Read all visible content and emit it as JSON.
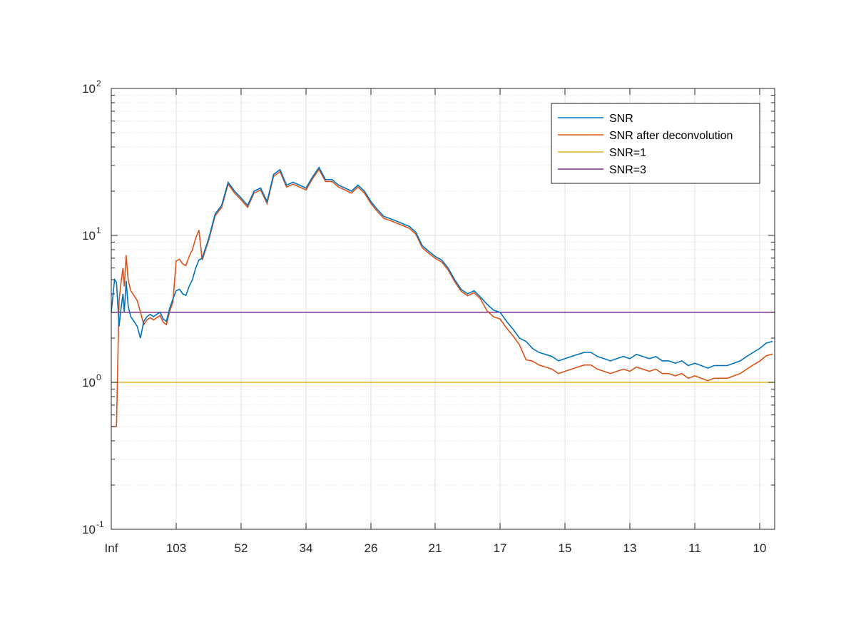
{
  "chart_data": {
    "type": "line",
    "title": "",
    "xlabel": "",
    "ylabel": "",
    "yscale": "log",
    "ylim": [
      0.1,
      100
    ],
    "y_tick_labels": [
      {
        "base": "10",
        "exp": "-1",
        "value": 0.1
      },
      {
        "base": "10",
        "exp": "0",
        "value": 1
      },
      {
        "base": "10",
        "exp": "1",
        "value": 10
      },
      {
        "base": "10",
        "exp": "2",
        "value": 100
      }
    ],
    "x_tick_labels": [
      "Inf",
      "103",
      "52",
      "34",
      "26",
      "21",
      "17",
      "15",
      "13",
      "11",
      "10"
    ],
    "grid": true,
    "minor_grid_y": true,
    "legend": {
      "placement": "top-right",
      "entries": [
        {
          "label": "SNR",
          "color": "#0072BD"
        },
        {
          "label": "SNR after deconvolution",
          "color": "#D95319"
        },
        {
          "label": "SNR=1",
          "color": "#EDB120"
        },
        {
          "label": "SNR=3",
          "color": "#7E2F8E"
        }
      ]
    },
    "series": [
      {
        "name": "SNR",
        "color": "#0072BD",
        "x_tick_positions": [
          0,
          0.05,
          0.08,
          0.12,
          0.15,
          0.18,
          0.2,
          0.23,
          0.26,
          0.3,
          0.35,
          0.4,
          0.45,
          0.5,
          0.55,
          0.6,
          0.65,
          0.7,
          0.75,
          0.8,
          0.85,
          0.9,
          0.95,
          1.0,
          1.05,
          1.1,
          1.15,
          1.2,
          1.25,
          1.3,
          1.35,
          1.4,
          1.5,
          1.6,
          1.7,
          1.8,
          1.9,
          2.0,
          2.1,
          2.2,
          2.3,
          2.4,
          2.5,
          2.6,
          2.7,
          2.8,
          2.9,
          3.0,
          3.1,
          3.2,
          3.3,
          3.4,
          3.5,
          3.6,
          3.7,
          3.8,
          3.9,
          4.0,
          4.1,
          4.2,
          4.3,
          4.4,
          4.5,
          4.6,
          4.7,
          4.8,
          4.9,
          5.0,
          5.1,
          5.2,
          5.3,
          5.4,
          5.5,
          5.6,
          5.7,
          5.8,
          5.9,
          6.0,
          6.1,
          6.2,
          6.3,
          6.4,
          6.5,
          6.6,
          6.7,
          6.8,
          6.9,
          7.0,
          7.1,
          7.2,
          7.3,
          7.4,
          7.5,
          7.6,
          7.7,
          7.8,
          7.9,
          8.0,
          8.1,
          8.2,
          8.3,
          8.4,
          8.5,
          8.6,
          8.7,
          8.8,
          8.9,
          9.0,
          9.1,
          9.2,
          9.3,
          9.4,
          9.5,
          9.6,
          9.7,
          9.8,
          9.9,
          10.0,
          10.1,
          10.2
        ],
        "values": [
          3.0,
          5.0,
          4.8,
          2.4,
          3.2,
          4.0,
          3.0,
          4.9,
          3.3,
          2.8,
          2.6,
          2.4,
          2.0,
          2.6,
          2.8,
          2.9,
          2.8,
          2.9,
          3.0,
          2.7,
          2.6,
          3.2,
          3.7,
          4.2,
          4.3,
          4.0,
          3.9,
          4.5,
          5.0,
          6.0,
          6.8,
          7.0,
          9.5,
          14,
          16,
          23,
          20,
          18,
          16,
          20,
          21,
          17,
          26,
          28,
          22,
          23,
          22,
          21,
          25,
          29,
          24,
          24,
          22,
          21,
          20,
          22,
          20,
          17,
          15,
          13.5,
          13,
          12.5,
          12,
          11.5,
          10.5,
          8.5,
          7.8,
          7.2,
          6.8,
          6.0,
          5.0,
          4.3,
          4.0,
          4.2,
          3.8,
          3.4,
          3.1,
          3.0,
          2.6,
          2.3,
          2.0,
          1.9,
          1.7,
          1.6,
          1.55,
          1.5,
          1.4,
          1.45,
          1.5,
          1.55,
          1.6,
          1.6,
          1.5,
          1.45,
          1.4,
          1.45,
          1.5,
          1.45,
          1.55,
          1.5,
          1.45,
          1.5,
          1.4,
          1.4,
          1.35,
          1.4,
          1.3,
          1.35,
          1.3,
          1.25,
          1.3,
          1.3,
          1.3,
          1.35,
          1.4,
          1.5,
          1.6,
          1.7,
          1.85,
          1.9
        ],
        "note_removed": ""
      }
    ]
  },
  "static_lines": [
    {
      "name": "SNR=1",
      "value": 1,
      "color": "#EDB120"
    },
    {
      "name": "SNR=3",
      "value": 3,
      "color": "#7E2F8E"
    }
  ]
}
